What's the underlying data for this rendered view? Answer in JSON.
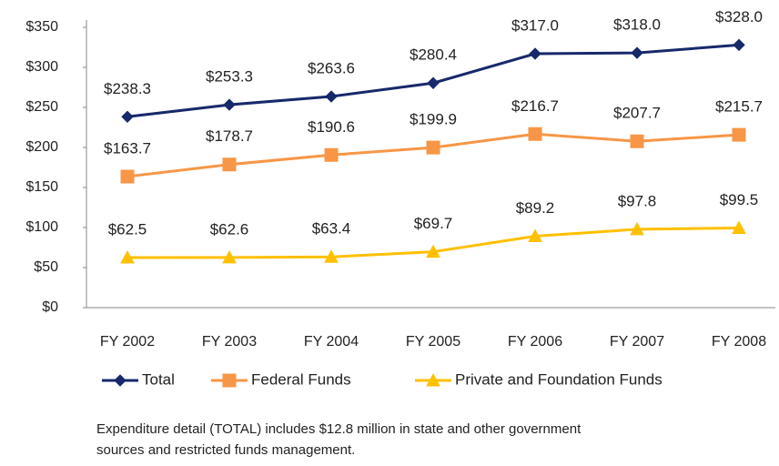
{
  "chart_data": {
    "type": "line",
    "categories": [
      "FY 2002",
      "FY 2003",
      "FY 2004",
      "FY 2005",
      "FY 2006",
      "FY 2007",
      "FY 2008"
    ],
    "series": [
      {
        "name": "Total",
        "color": "#17296b",
        "marker": "diamond",
        "values": [
          238.3,
          253.3,
          263.6,
          280.4,
          317.0,
          318.0,
          328.0
        ],
        "value_labels": [
          "$238.3",
          "$253.3",
          "$263.6",
          "$280.4",
          "$317.0",
          "$318.0",
          "$328.0"
        ]
      },
      {
        "name": "Federal Funds",
        "color": "#f79646",
        "marker": "square",
        "values": [
          163.7,
          178.7,
          190.6,
          199.9,
          216.7,
          207.7,
          215.7
        ],
        "value_labels": [
          "$163.7",
          "$178.7",
          "$190.6",
          "$199.9",
          "$216.7",
          "$207.7",
          "$215.7"
        ]
      },
      {
        "name": "Private and Foundation Funds",
        "color": "#ffc000",
        "marker": "triangle",
        "values": [
          62.5,
          62.6,
          63.4,
          69.7,
          89.2,
          97.8,
          99.5
        ],
        "value_labels": [
          "$62.5",
          "$62.6",
          "$63.4",
          "$69.7",
          "$89.2",
          "$97.8",
          "$99.5"
        ]
      }
    ],
    "ylim": [
      0,
      350
    ],
    "yticks": [
      {
        "value": 0,
        "label": "$0"
      },
      {
        "value": 50,
        "label": "$50"
      },
      {
        "value": 100,
        "label": "$100"
      },
      {
        "value": 150,
        "label": "$150"
      },
      {
        "value": 200,
        "label": "$200"
      },
      {
        "value": 250,
        "label": "$250"
      },
      {
        "value": 300,
        "label": "$300"
      },
      {
        "value": 350,
        "label": "$350"
      }
    ],
    "grid": false,
    "legend": "bottom",
    "caption": [
      "Expenditure detail (TOTAL) includes $12.8 million in state and other government",
      "sources and restricted funds management."
    ]
  }
}
